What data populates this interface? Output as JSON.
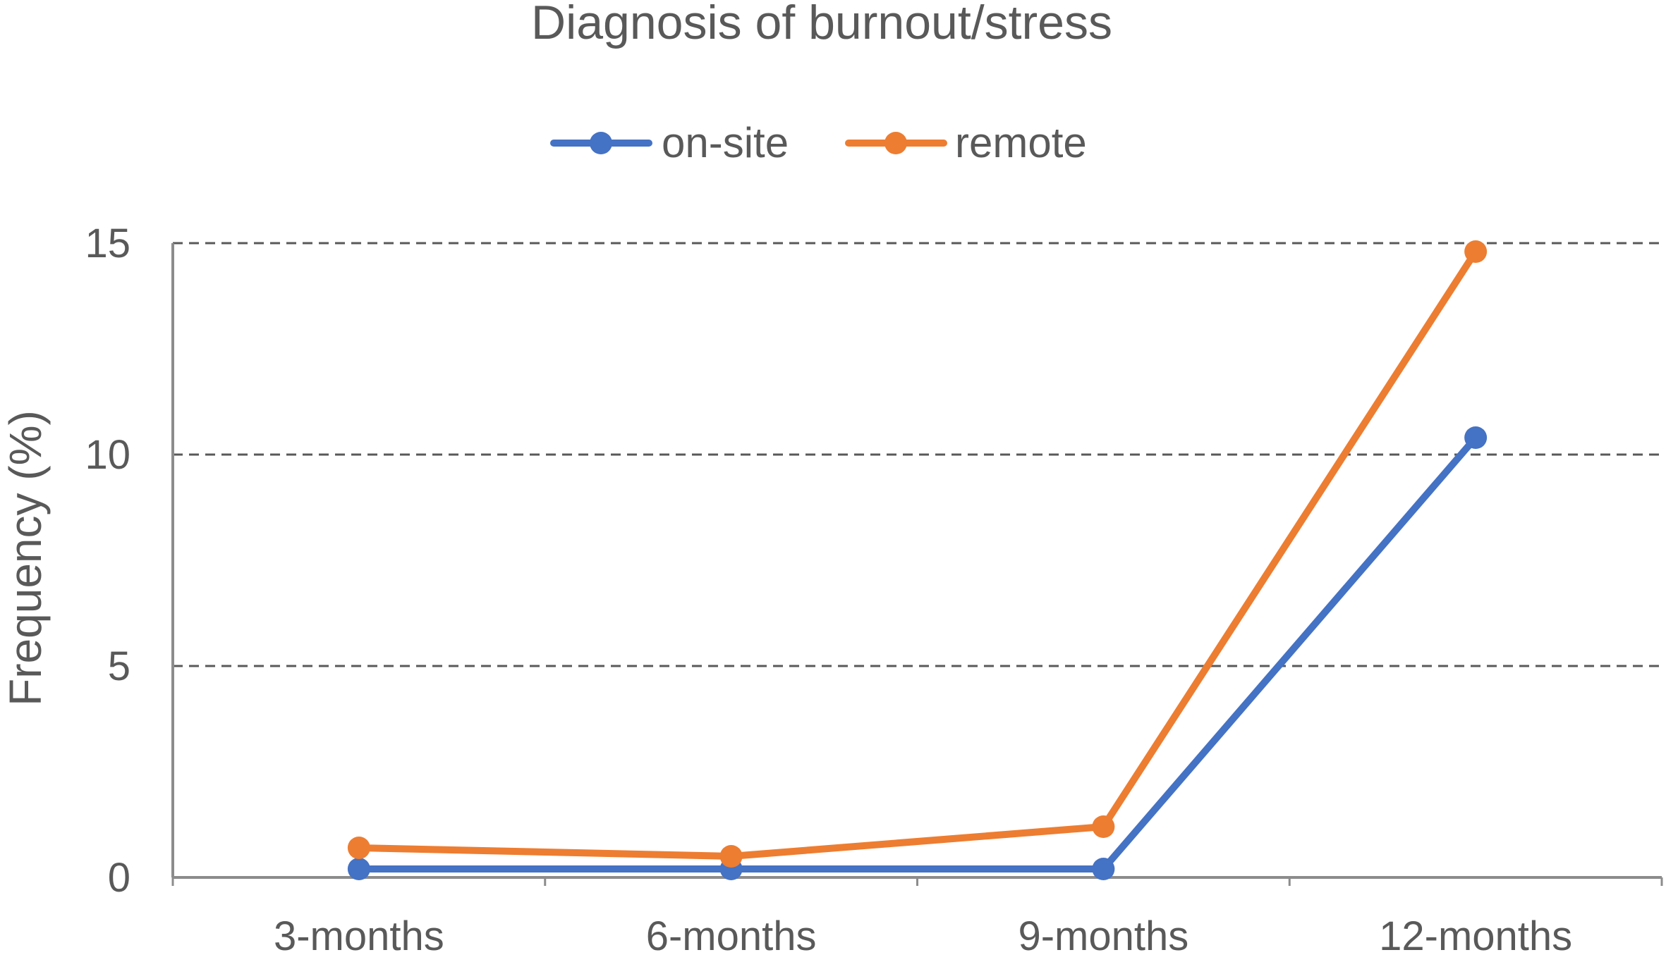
{
  "chart_data": {
    "type": "line",
    "title": "Diagnosis of burnout/stress",
    "xlabel": "",
    "ylabel": "Frequency (%)",
    "categories": [
      "3-months",
      "6-months",
      "9-months",
      "12-months"
    ],
    "series": [
      {
        "name": "on-site",
        "color": "#4472C4",
        "values": [
          0.2,
          0.2,
          0.2,
          10.4
        ]
      },
      {
        "name": "remote",
        "color": "#ED7D31",
        "values": [
          0.7,
          0.5,
          1.2,
          14.8
        ]
      }
    ],
    "ylim": [
      0,
      15
    ],
    "yticks": [
      "0",
      "5",
      "10",
      "15"
    ],
    "grid": "horizontal-dashed",
    "legend": "top-center"
  }
}
